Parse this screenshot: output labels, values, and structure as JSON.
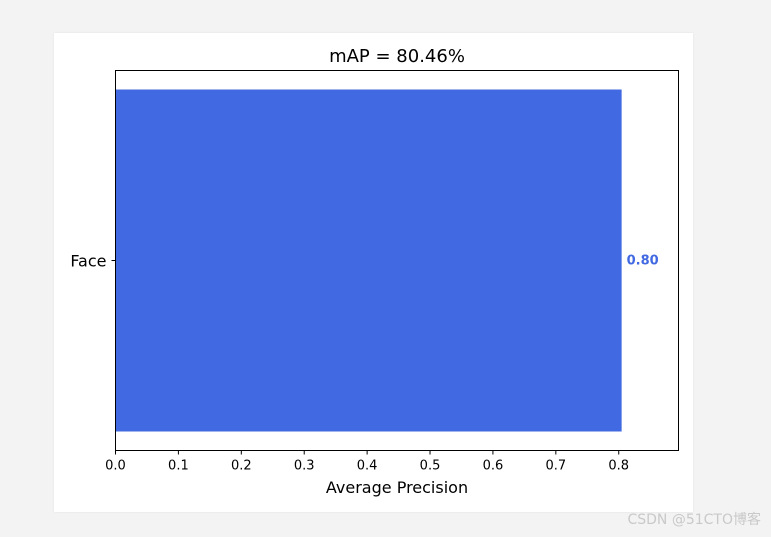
{
  "chart_data": {
    "type": "bar",
    "orientation": "horizontal",
    "title": "mAP = 80.46%",
    "xlabel": "Average Precision",
    "ylabel": "",
    "categories": [
      "Face"
    ],
    "values": [
      0.8046
    ],
    "value_labels": [
      "0.80"
    ],
    "xlim": [
      0,
      0.895
    ],
    "xticks": [
      "0.0",
      "0.1",
      "0.2",
      "0.3",
      "0.4",
      "0.5",
      "0.6",
      "0.7",
      "0.8"
    ],
    "bar_color": "#4169e1",
    "grid": false,
    "legend": "none"
  },
  "watermark": "CSDN @51CTO博客"
}
